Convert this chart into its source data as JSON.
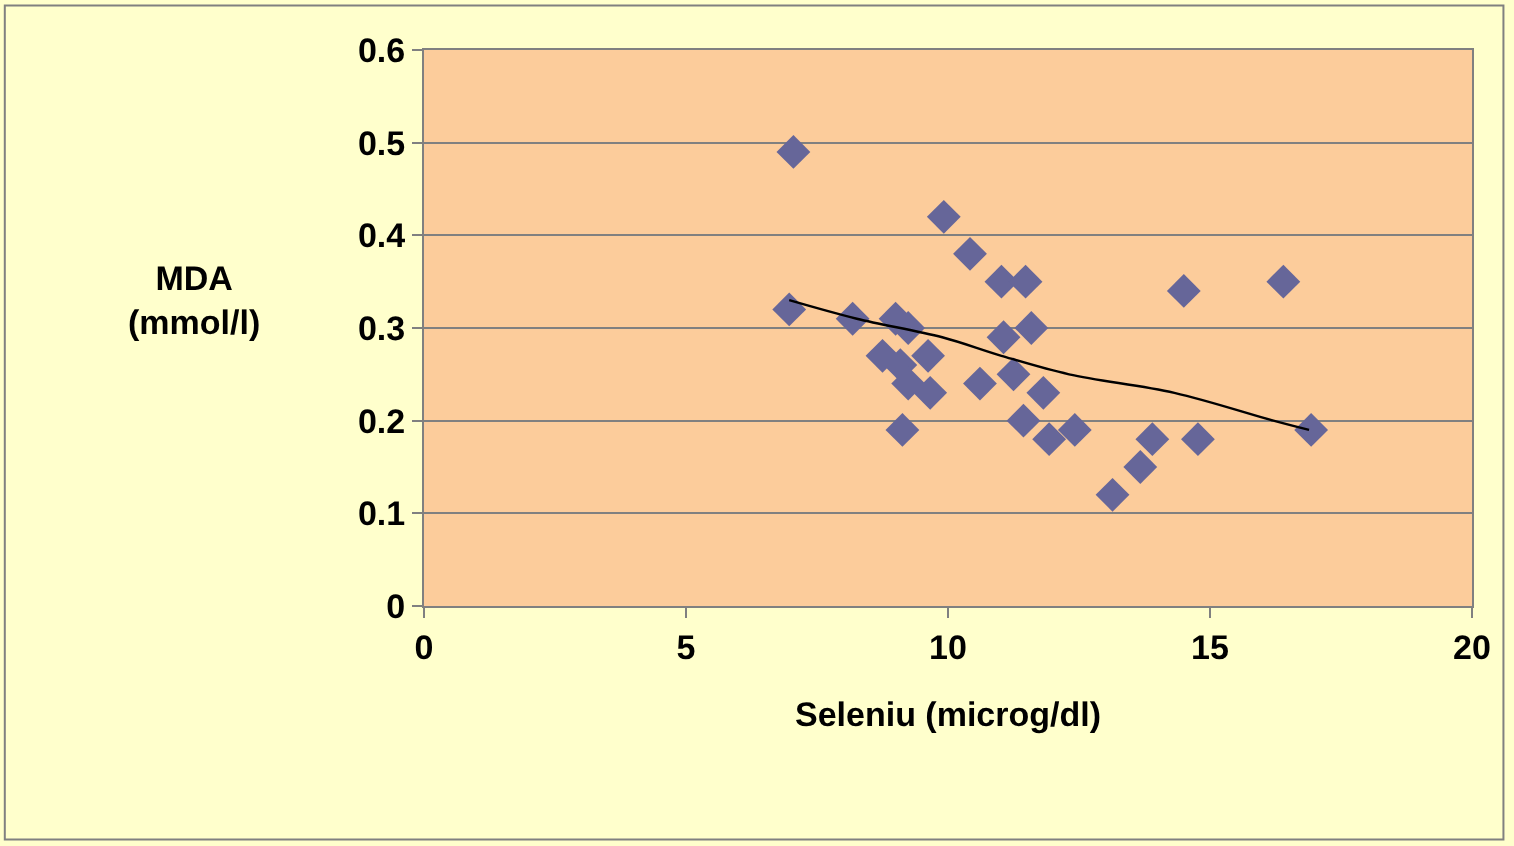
{
  "chart_data": {
    "type": "scatter",
    "xlabel": "Seleniu (microg/dl)",
    "ylabel": "MDA\n(mmol/l)",
    "xlim": [
      0,
      20
    ],
    "xticks": [
      0,
      5,
      10,
      15,
      20
    ],
    "ylim": [
      0,
      0.6
    ],
    "yticks": [
      0,
      0.1,
      0.2,
      0.3,
      0.4,
      0.5,
      0.6
    ],
    "grid": "y",
    "series": [
      {
        "marker": "diamond",
        "color": "#666699",
        "x": [
          7.05,
          6.97,
          8.18,
          9.0,
          9.24,
          8.75,
          9.09,
          9.62,
          9.24,
          9.66,
          9.13,
          9.92,
          10.42,
          11.02,
          11.48,
          11.06,
          11.59,
          10.61,
          11.25,
          11.82,
          11.44,
          11.93,
          12.42,
          13.9,
          13.67,
          13.14,
          14.77,
          14.5,
          16.4,
          16.93
        ],
        "values": [
          0.49,
          0.32,
          0.31,
          0.31,
          0.3,
          0.27,
          0.26,
          0.27,
          0.24,
          0.23,
          0.19,
          0.42,
          0.38,
          0.35,
          0.35,
          0.29,
          0.3,
          0.24,
          0.25,
          0.23,
          0.2,
          0.18,
          0.19,
          0.18,
          0.15,
          0.12,
          0.18,
          0.34,
          0.35,
          0.19
        ]
      },
      {
        "type": "line",
        "color": "#000000",
        "x": [
          6.97,
          8.26,
          9.89,
          11.02,
          12.31,
          14.32,
          16.21,
          16.89
        ],
        "values": [
          0.33,
          0.31,
          0.29,
          0.27,
          0.25,
          0.23,
          0.2,
          0.19
        ]
      }
    ]
  }
}
